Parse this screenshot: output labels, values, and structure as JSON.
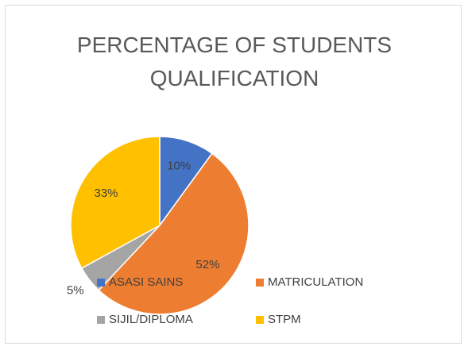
{
  "chart_data": {
    "type": "pie",
    "title": "PERCENTAGE OF STUDENTS QUALIFICATION",
    "categories": [
      "ASASI SAINS",
      "MATRICULATION",
      "SIJIL/DIPLOMA",
      "STPM"
    ],
    "values": [
      10,
      52,
      5,
      33
    ],
    "value_labels": [
      "10%",
      "52%",
      "5%",
      "33%"
    ],
    "colors": [
      "#4472c4",
      "#ed7d31",
      "#a5a5a5",
      "#ffc000"
    ],
    "legend": "bottom"
  }
}
